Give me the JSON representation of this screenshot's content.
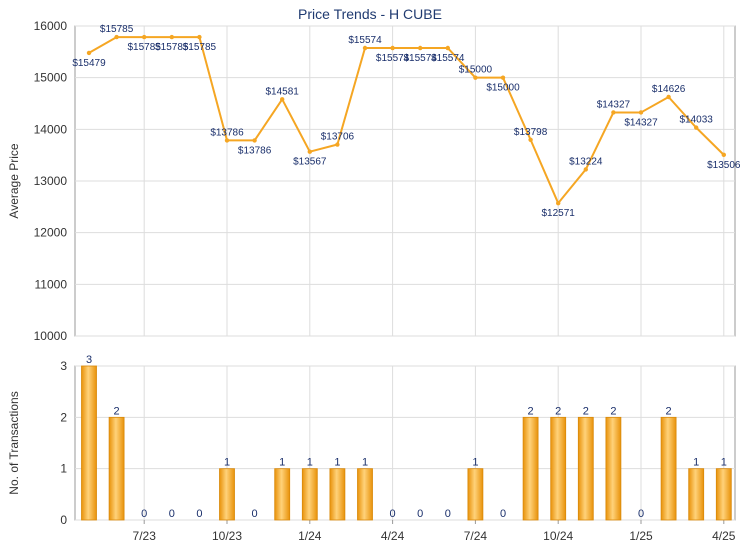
{
  "chart_data": [
    {
      "type": "line",
      "title": "Price Trends - H CUBE",
      "xlabel": "",
      "ylabel": "Average Price",
      "ylim": [
        10000,
        16000
      ],
      "yticks": [
        10000,
        11000,
        12000,
        13000,
        14000,
        15000,
        16000
      ],
      "grid": true,
      "series_color": "#f5a623",
      "x": [
        0,
        1,
        2,
        3,
        4,
        5,
        6,
        7,
        8,
        9,
        10,
        11,
        12,
        13,
        14,
        15,
        16,
        17,
        18,
        19,
        20,
        21,
        22,
        23
      ],
      "values": [
        15479,
        15785,
        15785,
        15785,
        15785,
        13786,
        13786,
        14581,
        13567,
        13706,
        15574,
        15574,
        15574,
        15574,
        15000,
        15000,
        13798,
        12571,
        13224,
        14327,
        14327,
        14626,
        14033,
        13506
      ],
      "labels": [
        "$15479",
        "$15785",
        "$15785",
        "$15785",
        "$15785",
        "$13786",
        "$13786",
        "$14581",
        "$13567",
        "$13706",
        "$15574",
        "$15574",
        "$15574",
        "$15574",
        "$15000",
        "$15000",
        "$13798",
        "$12571",
        "$13224",
        "$14327",
        "$14327",
        "$14626",
        "$14033",
        "$13506"
      ]
    },
    {
      "type": "bar",
      "title": "",
      "xlabel": "",
      "ylabel": "No. of Transactions",
      "ylim": [
        0,
        3
      ],
      "yticks": [
        0,
        1,
        2,
        3
      ],
      "grid": true,
      "bar_color": "#f5a623",
      "x": [
        0,
        1,
        2,
        3,
        4,
        5,
        6,
        7,
        8,
        9,
        10,
        11,
        12,
        13,
        14,
        15,
        16,
        17,
        18,
        19,
        20,
        21,
        22,
        23
      ],
      "values": [
        3,
        2,
        0,
        0,
        0,
        1,
        0,
        1,
        1,
        1,
        1,
        0,
        0,
        0,
        1,
        0,
        2,
        2,
        2,
        2,
        0,
        2,
        1,
        1
      ],
      "xtick_labels": [
        {
          "x": 2,
          "label": "7/23"
        },
        {
          "x": 5,
          "label": "10/23"
        },
        {
          "x": 8,
          "label": "1/24"
        },
        {
          "x": 11,
          "label": "4/24"
        },
        {
          "x": 14,
          "label": "7/24"
        },
        {
          "x": 17,
          "label": "10/24"
        },
        {
          "x": 20,
          "label": "1/25"
        },
        {
          "x": 23,
          "label": "4/25"
        }
      ]
    }
  ]
}
